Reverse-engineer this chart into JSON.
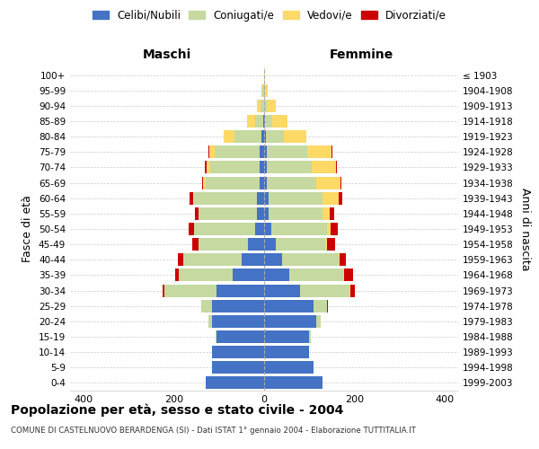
{
  "age_groups": [
    "0-4",
    "5-9",
    "10-14",
    "15-19",
    "20-24",
    "25-29",
    "30-34",
    "35-39",
    "40-44",
    "45-49",
    "50-54",
    "55-59",
    "60-64",
    "65-69",
    "70-74",
    "75-79",
    "80-84",
    "85-89",
    "90-94",
    "95-99",
    "100+"
  ],
  "birth_years": [
    "1999-2003",
    "1994-1998",
    "1989-1993",
    "1984-1988",
    "1979-1983",
    "1974-1978",
    "1969-1973",
    "1964-1968",
    "1959-1963",
    "1954-1958",
    "1949-1953",
    "1944-1948",
    "1939-1943",
    "1934-1938",
    "1929-1933",
    "1924-1928",
    "1919-1923",
    "1914-1918",
    "1909-1913",
    "1904-1908",
    "≤ 1903"
  ],
  "males": {
    "celibi": [
      130,
      115,
      115,
      105,
      115,
      115,
      105,
      70,
      50,
      35,
      20,
      15,
      15,
      10,
      10,
      10,
      5,
      2,
      0,
      0,
      0
    ],
    "coniugati": [
      0,
      0,
      0,
      3,
      8,
      25,
      115,
      120,
      130,
      110,
      135,
      130,
      140,
      120,
      110,
      100,
      60,
      18,
      8,
      3,
      0
    ],
    "vedovi": [
      0,
      0,
      0,
      0,
      0,
      0,
      0,
      0,
      0,
      0,
      0,
      0,
      2,
      5,
      8,
      12,
      25,
      18,
      8,
      2,
      0
    ],
    "divorziati": [
      0,
      0,
      0,
      0,
      0,
      0,
      5,
      8,
      12,
      15,
      12,
      8,
      8,
      2,
      4,
      2,
      0,
      0,
      0,
      0,
      0
    ]
  },
  "females": {
    "nubili": [
      130,
      110,
      100,
      100,
      115,
      110,
      80,
      55,
      40,
      25,
      15,
      10,
      10,
      5,
      5,
      5,
      3,
      2,
      0,
      0,
      0
    ],
    "coniugate": [
      0,
      0,
      0,
      3,
      10,
      30,
      110,
      120,
      125,
      110,
      125,
      120,
      120,
      110,
      100,
      90,
      40,
      15,
      5,
      2,
      0
    ],
    "vedove": [
      0,
      0,
      0,
      0,
      0,
      0,
      2,
      2,
      2,
      5,
      8,
      15,
      35,
      55,
      55,
      55,
      50,
      35,
      20,
      5,
      2
    ],
    "divorziate": [
      0,
      0,
      0,
      0,
      0,
      2,
      10,
      20,
      15,
      18,
      15,
      10,
      8,
      2,
      2,
      2,
      0,
      0,
      0,
      0,
      0
    ]
  },
  "colors": {
    "celibi": "#4472c4",
    "coniugati": "#c5d9a0",
    "vedovi": "#ffd966",
    "divorziati": "#cc0000"
  },
  "xlim": 430,
  "title": "Popolazione per età, sesso e stato civile - 2004",
  "subtitle": "COMUNE DI CASTELNUOVO BERARDENGA (SI) - Dati ISTAT 1° gennaio 2004 - Elaborazione TUTTITALIA.IT",
  "ylabel_left": "Fasce di età",
  "ylabel_right": "Anni di nascita",
  "xlabel_left": "Maschi",
  "xlabel_right": "Femmine",
  "legend_labels": [
    "Celibi/Nubili",
    "Coniugati/e",
    "Vedovi/e",
    "Divorziati/e"
  ],
  "background_color": "#ffffff",
  "grid_color": "#cccccc"
}
